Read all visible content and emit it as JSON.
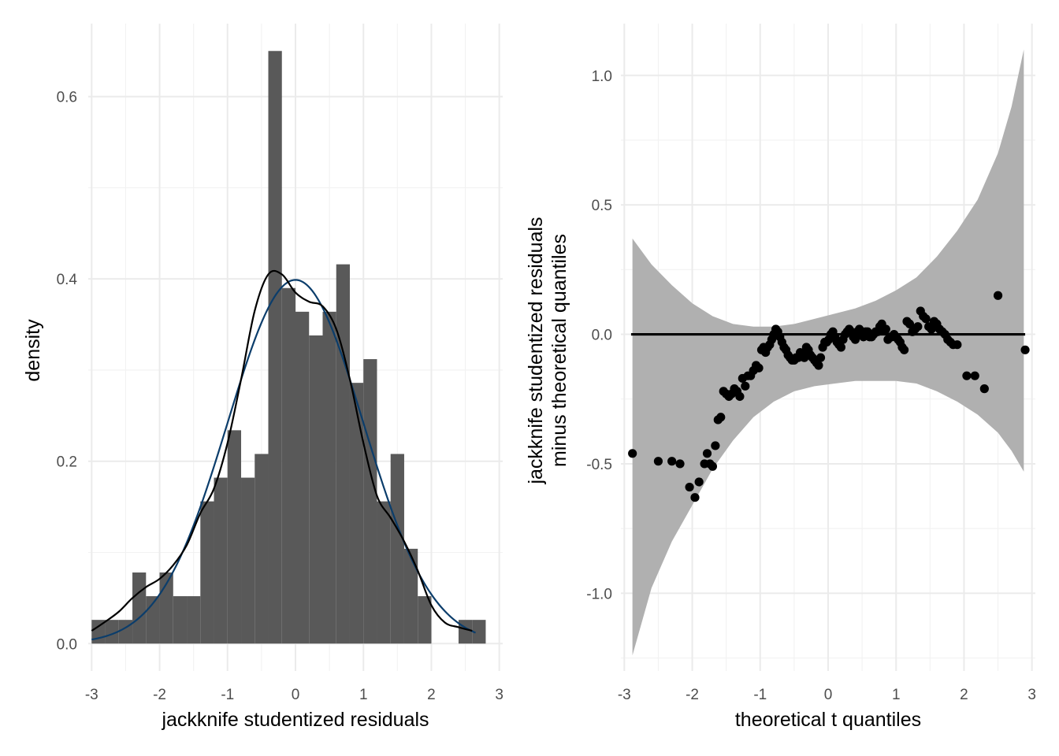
{
  "chart_data": [
    {
      "type": "histogram",
      "xlabel": "jackknife studentized residuals",
      "ylabel": "density",
      "xlim": [
        -3.05,
        3.05
      ],
      "ylim": [
        -0.03,
        0.68
      ],
      "xticks": [
        -3,
        -2,
        -1,
        0,
        1,
        2,
        3
      ],
      "xtick_labels": [
        "-3",
        "-2",
        "-1",
        "0",
        "1",
        "2",
        "3"
      ],
      "yticks": [
        0.0,
        0.2,
        0.4,
        0.6
      ],
      "ytick_labels": [
        "0.0",
        "0.2",
        "0.4",
        "0.6"
      ],
      "grid": true,
      "bar_color": "#595959",
      "bin_width": 0.2,
      "bins": [
        {
          "x0": -3.0,
          "x1": -2.8,
          "density": 0.026
        },
        {
          "x0": -2.8,
          "x1": -2.6,
          "density": 0.026
        },
        {
          "x0": -2.6,
          "x1": -2.4,
          "density": 0.026
        },
        {
          "x0": -2.4,
          "x1": -2.2,
          "density": 0.078
        },
        {
          "x0": -2.2,
          "x1": -2.0,
          "density": 0.052
        },
        {
          "x0": -2.0,
          "x1": -1.8,
          "density": 0.078
        },
        {
          "x0": -1.8,
          "x1": -1.6,
          "density": 0.052
        },
        {
          "x0": -1.6,
          "x1": -1.4,
          "density": 0.052
        },
        {
          "x0": -1.4,
          "x1": -1.2,
          "density": 0.156
        },
        {
          "x0": -1.2,
          "x1": -1.0,
          "density": 0.182
        },
        {
          "x0": -1.0,
          "x1": -0.8,
          "density": 0.234
        },
        {
          "x0": -0.8,
          "x1": -0.6,
          "density": 0.182
        },
        {
          "x0": -0.6,
          "x1": -0.4,
          "density": 0.208
        },
        {
          "x0": -0.4,
          "x1": -0.2,
          "density": 0.65
        },
        {
          "x0": -0.2,
          "x1": 0.0,
          "density": 0.39
        },
        {
          "x0": 0.0,
          "x1": 0.2,
          "density": 0.364
        },
        {
          "x0": 0.2,
          "x1": 0.4,
          "density": 0.338
        },
        {
          "x0": 0.4,
          "x1": 0.6,
          "density": 0.364
        },
        {
          "x0": 0.6,
          "x1": 0.8,
          "density": 0.416
        },
        {
          "x0": 0.8,
          "x1": 1.0,
          "density": 0.286
        },
        {
          "x0": 1.0,
          "x1": 1.2,
          "density": 0.312
        },
        {
          "x0": 1.2,
          "x1": 1.4,
          "density": 0.156
        },
        {
          "x0": 1.4,
          "x1": 1.6,
          "density": 0.208
        },
        {
          "x0": 1.6,
          "x1": 1.8,
          "density": 0.104
        },
        {
          "x0": 1.8,
          "x1": 2.0,
          "density": 0.052
        },
        {
          "x0": 2.0,
          "x1": 2.2,
          "density": 0.0
        },
        {
          "x0": 2.2,
          "x1": 2.4,
          "density": 0.0
        },
        {
          "x0": 2.4,
          "x1": 2.6,
          "density": 0.026
        },
        {
          "x0": 2.6,
          "x1": 2.8,
          "density": 0.026
        }
      ],
      "normal_curve": {
        "mean": 0,
        "sd": 1,
        "from": -3.0,
        "to": 2.65,
        "color": "#0b3d6b"
      },
      "density_curve": {
        "color": "#000000",
        "x": [
          -3.0,
          -2.8,
          -2.6,
          -2.4,
          -2.2,
          -2.0,
          -1.8,
          -1.6,
          -1.4,
          -1.2,
          -1.0,
          -0.8,
          -0.6,
          -0.4,
          -0.2,
          0.0,
          0.2,
          0.4,
          0.6,
          0.8,
          1.0,
          1.2,
          1.4,
          1.6,
          1.8,
          2.0,
          2.2,
          2.4,
          2.6
        ],
        "y": [
          0.014,
          0.024,
          0.035,
          0.05,
          0.062,
          0.071,
          0.086,
          0.108,
          0.143,
          0.17,
          0.22,
          0.29,
          0.365,
          0.405,
          0.405,
          0.385,
          0.375,
          0.37,
          0.345,
          0.29,
          0.22,
          0.162,
          0.138,
          0.112,
          0.08,
          0.042,
          0.023,
          0.018,
          0.014
        ]
      }
    },
    {
      "type": "scatter",
      "xlabel": "theoretical t quantiles",
      "ylabel_lines": [
        "jackknife studentized residuals",
        "minus theoretical quantiles"
      ],
      "xlim": [
        -3.05,
        3.05
      ],
      "ylim": [
        -1.3,
        1.2
      ],
      "xticks": [
        -3,
        -2,
        -1,
        0,
        1,
        2,
        3
      ],
      "xtick_labels": [
        "-3",
        "-2",
        "-1",
        "0",
        "1",
        "2",
        "3"
      ],
      "yticks": [
        -1.0,
        -0.5,
        0.0,
        0.5,
        1.0
      ],
      "ytick_labels": [
        "-1.0",
        "-0.5",
        "0.0",
        "0.5",
        "1.0"
      ],
      "grid": true,
      "point_color": "#000000",
      "band_color": "#b0b0b0",
      "reference_line": {
        "y": 0,
        "from": -2.9,
        "to": 2.9,
        "color": "#000000"
      },
      "confidence_band": {
        "x": [
          -2.88,
          -2.6,
          -2.3,
          -2.0,
          -1.7,
          -1.4,
          -1.1,
          -0.8,
          -0.5,
          -0.2,
          0.1,
          0.4,
          0.7,
          1.0,
          1.3,
          1.6,
          1.9,
          2.2,
          2.5,
          2.7,
          2.88
        ],
        "upper": [
          0.37,
          0.27,
          0.19,
          0.12,
          0.07,
          0.04,
          0.03,
          0.03,
          0.04,
          0.06,
          0.08,
          0.1,
          0.13,
          0.17,
          0.22,
          0.3,
          0.4,
          0.52,
          0.7,
          0.88,
          1.1
        ],
        "lower": [
          -1.24,
          -0.98,
          -0.8,
          -0.66,
          -0.52,
          -0.41,
          -0.32,
          -0.26,
          -0.22,
          -0.2,
          -0.19,
          -0.18,
          -0.18,
          -0.18,
          -0.19,
          -0.22,
          -0.26,
          -0.31,
          -0.38,
          -0.45,
          -0.53
        ]
      },
      "points": {
        "x": [
          -2.88,
          -2.5,
          -2.3,
          -2.18,
          -2.04,
          -1.96,
          -1.9,
          -1.82,
          -1.78,
          -1.74,
          -1.7,
          -1.66,
          -1.62,
          -1.58,
          -1.54,
          -1.5,
          -1.46,
          -1.42,
          -1.38,
          -1.34,
          -1.3,
          -1.26,
          -1.22,
          -1.18,
          -1.14,
          -1.1,
          -1.06,
          -1.02,
          -0.98,
          -0.95,
          -0.92,
          -0.89,
          -0.86,
          -0.83,
          -0.8,
          -0.77,
          -0.74,
          -0.71,
          -0.68,
          -0.65,
          -0.62,
          -0.59,
          -0.56,
          -0.53,
          -0.5,
          -0.47,
          -0.44,
          -0.41,
          -0.38,
          -0.35,
          -0.32,
          -0.29,
          -0.26,
          -0.23,
          -0.2,
          -0.17,
          -0.14,
          -0.11,
          -0.08,
          -0.05,
          -0.02,
          0.01,
          0.04,
          0.07,
          0.1,
          0.13,
          0.16,
          0.19,
          0.22,
          0.25,
          0.28,
          0.31,
          0.34,
          0.37,
          0.4,
          0.43,
          0.46,
          0.49,
          0.52,
          0.55,
          0.58,
          0.61,
          0.64,
          0.67,
          0.7,
          0.73,
          0.76,
          0.79,
          0.82,
          0.85,
          0.88,
          0.91,
          0.94,
          0.97,
          1.0,
          1.03,
          1.06,
          1.09,
          1.12,
          1.16,
          1.2,
          1.24,
          1.28,
          1.32,
          1.36,
          1.4,
          1.44,
          1.48,
          1.52,
          1.56,
          1.6,
          1.64,
          1.68,
          1.72,
          1.76,
          1.8,
          1.84,
          1.9,
          2.04,
          2.16,
          2.3,
          2.5,
          2.9
        ],
        "y": [
          -0.46,
          -0.49,
          -0.49,
          -0.5,
          -0.59,
          -0.63,
          -0.57,
          -0.5,
          -0.46,
          -0.5,
          -0.51,
          -0.43,
          -0.33,
          -0.32,
          -0.22,
          -0.23,
          -0.24,
          -0.23,
          -0.21,
          -0.22,
          -0.24,
          -0.17,
          -0.2,
          -0.16,
          -0.16,
          -0.14,
          -0.12,
          -0.13,
          -0.06,
          -0.05,
          -0.07,
          -0.05,
          -0.04,
          -0.02,
          0.0,
          0.02,
          0.01,
          -0.01,
          -0.03,
          -0.05,
          -0.06,
          -0.08,
          -0.09,
          -0.1,
          -0.1,
          -0.09,
          -0.09,
          -0.07,
          -0.08,
          -0.09,
          -0.05,
          -0.06,
          -0.08,
          -0.09,
          -0.1,
          -0.11,
          -0.12,
          -0.09,
          -0.05,
          -0.03,
          -0.03,
          -0.02,
          0.0,
          0.01,
          -0.01,
          -0.03,
          -0.04,
          -0.05,
          -0.02,
          0.0,
          0.01,
          0.02,
          0.01,
          -0.01,
          -0.02,
          0.01,
          0.02,
          0.0,
          -0.01,
          0.01,
          0.01,
          -0.01,
          -0.01,
          0.0,
          0.01,
          0.01,
          0.03,
          0.04,
          0.02,
          0.02,
          -0.02,
          -0.01,
          -0.01,
          0.0,
          -0.01,
          -0.02,
          -0.03,
          -0.05,
          -0.06,
          0.05,
          0.04,
          0.01,
          0.02,
          0.03,
          0.09,
          0.07,
          0.06,
          0.03,
          0.02,
          0.05,
          0.04,
          0.02,
          0.01,
          0.0,
          -0.02,
          -0.03,
          -0.04,
          -0.04,
          -0.16,
          -0.16,
          -0.21,
          0.15,
          -0.06
        ]
      }
    }
  ]
}
